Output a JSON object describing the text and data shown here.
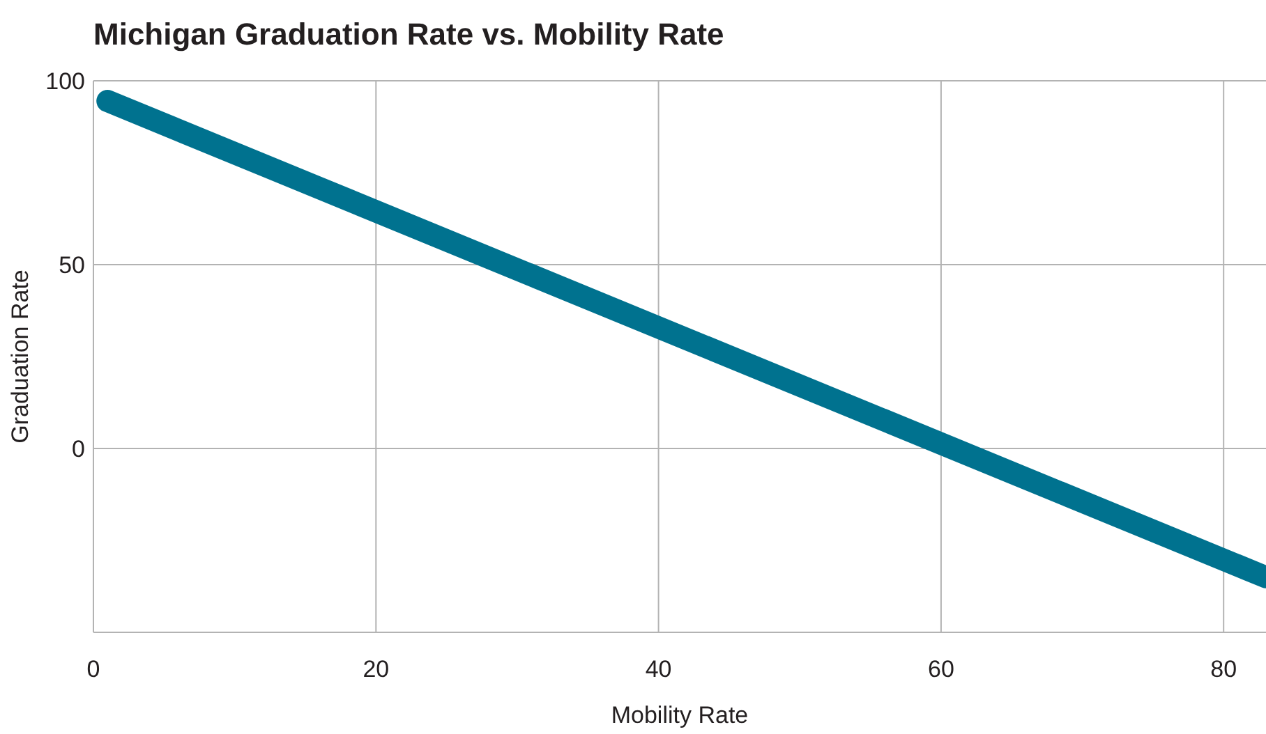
{
  "chart_data": {
    "type": "line",
    "title": "Michigan Graduation Rate vs. Mobility Rate",
    "xlabel": "Mobility Rate",
    "ylabel": "Graduation Rate",
    "x": [
      1,
      83
    ],
    "series": [
      {
        "color": "#00728f",
        "values": [
          94.5,
          -35
        ]
      }
    ],
    "xlim": [
      0,
      83
    ],
    "xticks": [
      0,
      20,
      40,
      60,
      80
    ],
    "ylim": [
      -50,
      100
    ],
    "yticks": [
      {
        "value": -50,
        "label": null
      },
      0,
      50,
      100
    ],
    "grid": true,
    "marker": "none",
    "line_style": "solid"
  }
}
